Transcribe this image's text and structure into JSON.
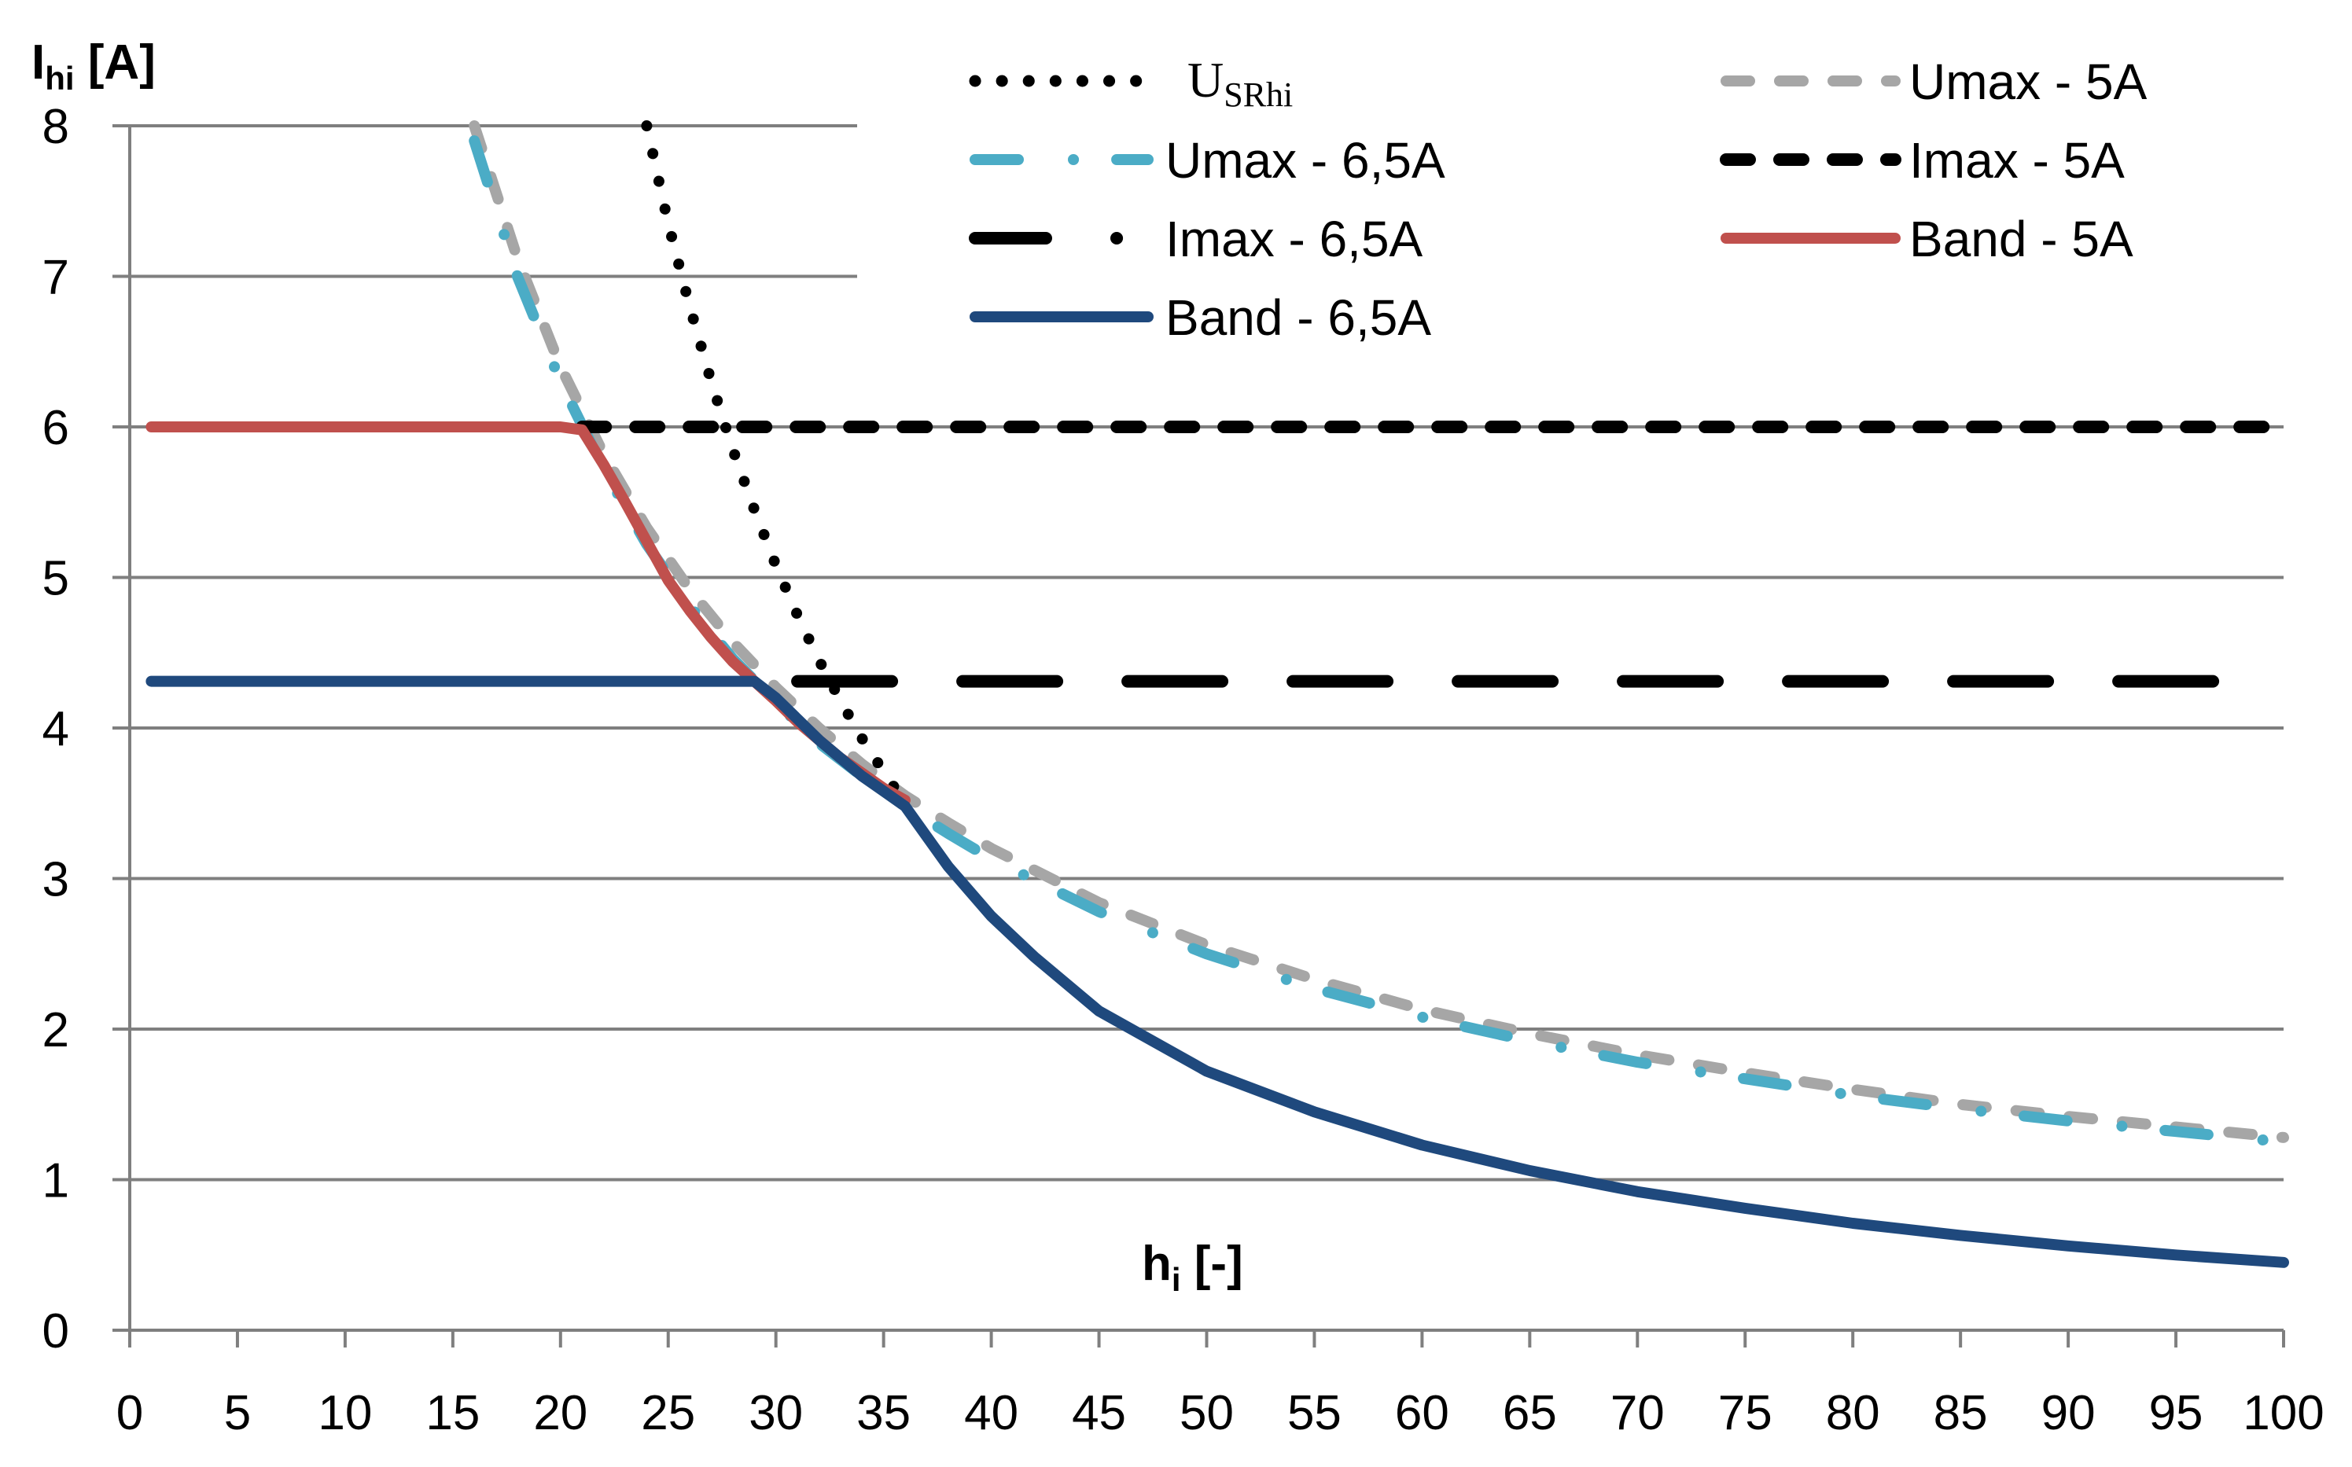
{
  "chart_data": {
    "type": "line",
    "title": "",
    "ylabel": {
      "main": "I",
      "sub": "hi",
      "unit": " [A]"
    },
    "xlabel": {
      "main": "h",
      "sub": "i",
      "unit": " [-]"
    },
    "xlim": [
      0,
      100
    ],
    "ylim": [
      0,
      8
    ],
    "x_ticks": [
      0,
      5,
      10,
      15,
      20,
      25,
      30,
      35,
      40,
      45,
      50,
      55,
      60,
      65,
      70,
      75,
      80,
      85,
      90,
      95,
      100
    ],
    "y_ticks": [
      0,
      1,
      2,
      3,
      4,
      5,
      6,
      7,
      8
    ],
    "grid": "horizontal",
    "series": [
      {
        "name": "U",
        "name_sub": "SRhi",
        "style": "dotted",
        "color": "#000000",
        "x": [
          24,
          25,
          26,
          27,
          28,
          29,
          30,
          31,
          32,
          33,
          34,
          35,
          36
        ],
        "y": [
          8.0,
          7.35,
          6.8,
          6.3,
          5.85,
          5.45,
          5.08,
          4.75,
          4.45,
          4.18,
          3.93,
          3.71,
          3.5
        ]
      },
      {
        "name": "Umax - 5A",
        "style": "dashed",
        "color": "#a6a6a6",
        "x": [
          16,
          18,
          20,
          22,
          24,
          26,
          28,
          30,
          32,
          34,
          36,
          38,
          40,
          45,
          50,
          55,
          60,
          65,
          70,
          75,
          80,
          85,
          90,
          95,
          100
        ],
        "y": [
          8.0,
          7.12,
          6.4,
          5.82,
          5.33,
          4.92,
          4.57,
          4.27,
          4.0,
          3.76,
          3.55,
          3.37,
          3.2,
          2.84,
          2.56,
          2.33,
          2.13,
          1.97,
          1.83,
          1.71,
          1.6,
          1.5,
          1.42,
          1.35,
          1.28
        ]
      },
      {
        "name": "Umax - 6,5A",
        "style": "dash-dot",
        "color": "#4bacc6",
        "x": [
          16,
          18,
          20,
          22,
          24,
          26,
          28,
          30,
          32,
          34,
          36,
          38,
          40,
          45,
          50,
          55,
          60,
          65,
          70,
          75,
          80,
          85,
          90,
          95,
          100
        ],
        "y": [
          7.9,
          7.0,
          6.3,
          5.72,
          5.22,
          4.81,
          4.46,
          4.17,
          3.9,
          3.68,
          3.48,
          3.3,
          3.13,
          2.78,
          2.5,
          2.27,
          2.08,
          1.92,
          1.78,
          1.67,
          1.56,
          1.47,
          1.39,
          1.32,
          1.25
        ]
      },
      {
        "name": "Imax - 5A",
        "style": "long-dash",
        "color": "#000000",
        "x": [
          21,
          100
        ],
        "y": [
          6.0,
          6.0
        ]
      },
      {
        "name": "Imax - 6,5A",
        "style": "long-dash-dot",
        "color": "#000000",
        "x": [
          31,
          98
        ],
        "y": [
          4.31,
          4.31
        ]
      },
      {
        "name": "Band - 5A",
        "style": "solid",
        "color": "#c0504d",
        "x": [
          1,
          5,
          10,
          15,
          20,
          21,
          22,
          23,
          24,
          25,
          26,
          27,
          28,
          29,
          30,
          31,
          32,
          33,
          34,
          35,
          36
        ],
        "y": [
          6.0,
          6.0,
          6.0,
          6.0,
          6.0,
          5.98,
          5.75,
          5.5,
          5.24,
          4.98,
          4.78,
          4.6,
          4.44,
          4.31,
          4.18,
          4.04,
          3.92,
          3.8,
          3.7,
          3.6,
          3.52
        ]
      },
      {
        "name": "Band - 6,5A",
        "style": "solid",
        "color": "#1f497d",
        "x": [
          1,
          5,
          10,
          15,
          20,
          25,
          29,
          30,
          31,
          32,
          33,
          34,
          35,
          36,
          37,
          38,
          40,
          42,
          45,
          50,
          55,
          60,
          65,
          70,
          75,
          80,
          85,
          90,
          95,
          100
        ],
        "y": [
          4.31,
          4.31,
          4.31,
          4.31,
          4.31,
          4.31,
          4.31,
          4.2,
          4.06,
          3.92,
          3.8,
          3.68,
          3.58,
          3.48,
          3.28,
          3.08,
          2.75,
          2.48,
          2.12,
          1.72,
          1.45,
          1.23,
          1.06,
          0.92,
          0.81,
          0.71,
          0.63,
          0.56,
          0.5,
          0.45
        ]
      }
    ],
    "legend": {
      "position": "top-right",
      "columns": [
        [
          "U",
          "Umax - 6,5A",
          "Imax - 6,5A",
          "Band - 6,5A"
        ],
        [
          "Umax - 5A",
          "Imax - 5A",
          "Band - 5A"
        ]
      ]
    }
  }
}
